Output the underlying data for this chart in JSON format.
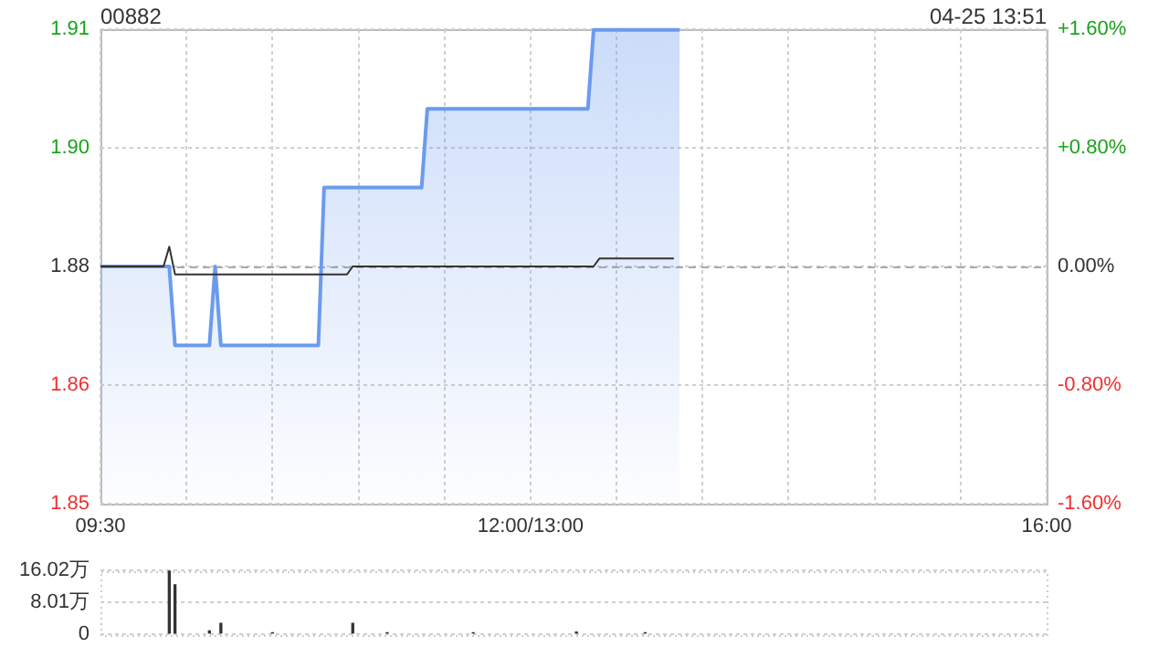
{
  "chart_data": [
    {
      "type": "line",
      "title": "00882",
      "subtitle": "04-25 13:51",
      "marker": "none",
      "grid": true,
      "categories": [
        "09:30",
        null,
        null,
        null,
        null,
        null,
        null,
        null,
        null,
        null,
        null,
        null,
        null,
        null,
        null,
        null,
        null,
        null,
        null,
        null,
        null,
        null,
        null,
        null,
        null,
        null,
        null,
        null,
        null,
        null,
        null,
        null,
        null,
        null,
        null,
        null,
        null,
        null,
        null,
        null,
        null,
        null,
        null,
        null,
        null,
        null,
        null,
        null,
        null,
        null,
        null,
        null,
        null,
        null,
        null,
        null,
        null,
        null,
        null,
        null,
        null,
        null,
        null,
        null,
        null,
        null,
        null,
        null,
        null,
        null,
        null,
        null,
        null,
        null,
        null,
        "12:00/13:00",
        null,
        null,
        null,
        null,
        null,
        null,
        null,
        null,
        null,
        null,
        null,
        null,
        null,
        null,
        null,
        null,
        null,
        null,
        null,
        null,
        null,
        null,
        null,
        null,
        null,
        null,
        null,
        null,
        null,
        null,
        null,
        null,
        null,
        null,
        null,
        null,
        null,
        null,
        null,
        null,
        null,
        null,
        null,
        null,
        null,
        null,
        null,
        null,
        null,
        null,
        null,
        null,
        null,
        null,
        null,
        null,
        null,
        null,
        null,
        null,
        null,
        null,
        null,
        null,
        null,
        null,
        null,
        null,
        null,
        null,
        null,
        null,
        null,
        null,
        null,
        null,
        null,
        null,
        null,
        null,
        null,
        null,
        null,
        null,
        null,
        null,
        null,
        null,
        null,
        "16:00"
      ],
      "ylim": [
        1.84992,
        1.91008
      ],
      "yticks": [
        {
          "value": 1.84992,
          "label": "1.85"
        },
        {
          "value": 1.86496,
          "label": "1.86"
        },
        {
          "value": 1.88,
          "label": "1.88"
        },
        {
          "value": 1.89504,
          "label": "1.90"
        },
        {
          "value": 1.91008,
          "label": "1.91"
        }
      ],
      "y2lim": [
        -1.6,
        1.6
      ],
      "y2ticks": [
        {
          "value": -1.6,
          "label": "-1.60%"
        },
        {
          "value": -0.8,
          "label": "-0.80%"
        },
        {
          "value": 0,
          "label": "0.00%"
        },
        {
          "value": 0.8,
          "label": "+0.80%"
        },
        {
          "value": 1.6,
          "label": "+1.60%"
        }
      ],
      "ref_lines": [
        {
          "axis": "y",
          "value": 1.88,
          "line_style": "dashed",
          "color": "#aaaaaa"
        }
      ],
      "series": [
        {
          "type": "area",
          "color": "#6a9bef",
          "values": [
            1.88,
            1.88,
            1.88,
            1.88,
            1.88,
            1.88,
            1.88,
            1.88,
            1.88,
            1.88,
            1.88,
            1.88,
            1.88,
            1.87,
            1.87,
            1.87,
            1.87,
            1.87,
            1.87,
            1.87,
            1.88,
            1.87,
            1.87,
            1.87,
            1.87,
            1.87,
            1.87,
            1.87,
            1.87,
            1.87,
            1.87,
            1.87,
            1.87,
            1.87,
            1.87,
            1.87,
            1.87,
            1.87,
            1.87,
            1.89,
            1.89,
            1.89,
            1.89,
            1.89,
            1.89,
            1.89,
            1.89,
            1.89,
            1.89,
            1.89,
            1.89,
            1.89,
            1.89,
            1.89,
            1.89,
            1.89,
            1.89,
            1.9,
            1.9,
            1.9,
            1.9,
            1.9,
            1.9,
            1.9,
            1.9,
            1.9,
            1.9,
            1.9,
            1.9,
            1.9,
            1.9,
            1.9,
            1.9,
            1.9,
            1.9,
            1.9,
            1.9,
            1.9,
            1.9,
            1.9,
            1.9,
            1.9,
            1.9,
            1.9,
            1.9,
            1.9,
            1.91,
            1.91,
            1.91,
            1.91,
            1.91,
            1.91,
            1.91,
            1.91,
            1.91,
            1.91,
            1.91,
            1.91,
            1.91,
            1.91,
            1.91,
            1.91,
            null,
            null,
            null,
            null,
            null,
            null,
            null,
            null,
            null,
            null,
            null,
            null,
            null,
            null,
            null,
            null,
            null,
            null,
            null,
            null,
            null,
            null,
            null,
            null,
            null,
            null,
            null,
            null,
            null,
            null,
            null,
            null,
            null,
            null,
            null,
            null,
            null,
            null,
            null,
            null,
            null,
            null,
            null,
            null,
            null,
            null,
            null,
            null,
            null,
            null,
            null,
            null,
            null,
            null,
            null,
            null,
            null,
            null,
            null,
            null,
            null,
            null,
            null,
            null
          ]
        },
        {
          "type": "line",
          "color": "#333333",
          "values": [
            1.88,
            1.88,
            1.88,
            1.88,
            1.88,
            1.88,
            1.88,
            1.88,
            1.88,
            1.88,
            1.88,
            1.88,
            1.8825,
            1.879,
            1.879,
            1.879,
            1.879,
            1.879,
            1.879,
            1.879,
            1.879,
            1.879,
            1.879,
            1.879,
            1.879,
            1.879,
            1.879,
            1.879,
            1.879,
            1.879,
            1.879,
            1.879,
            1.879,
            1.879,
            1.879,
            1.879,
            1.879,
            1.879,
            1.879,
            1.879,
            1.879,
            1.879,
            1.879,
            1.879,
            1.88,
            1.88,
            1.88,
            1.88,
            1.88,
            1.88,
            1.88,
            1.88,
            1.88,
            1.88,
            1.88,
            1.88,
            1.88,
            1.88,
            1.88,
            1.88,
            1.88,
            1.88,
            1.88,
            1.88,
            1.88,
            1.88,
            1.88,
            1.88,
            1.88,
            1.88,
            1.88,
            1.88,
            1.88,
            1.88,
            1.88,
            1.88,
            1.88,
            1.88,
            1.88,
            1.88,
            1.88,
            1.88,
            1.88,
            1.88,
            1.88,
            1.88,
            1.88,
            1.881,
            1.881,
            1.881,
            1.881,
            1.881,
            1.881,
            1.881,
            1.881,
            1.881,
            1.881,
            1.881,
            1.881,
            1.881,
            1.881,
            null,
            null,
            null,
            null,
            null,
            null,
            null,
            null,
            null,
            null,
            null,
            null,
            null,
            null,
            null,
            null,
            null,
            null,
            null,
            null,
            null,
            null,
            null,
            null,
            null,
            null,
            null,
            null,
            null,
            null,
            null,
            null,
            null,
            null,
            null,
            null,
            null,
            null,
            null,
            null,
            null,
            null,
            null,
            null,
            null,
            null,
            null,
            null,
            null,
            null,
            null,
            null,
            null,
            null,
            null,
            null,
            null,
            null,
            null,
            null,
            null,
            null,
            null,
            null,
            null
          ]
        }
      ]
    },
    {
      "type": "bar",
      "color": "#333333",
      "grid": "y",
      "tick_labels": "y",
      "categories": [
        null,
        null,
        null,
        null,
        null,
        null,
        null,
        null,
        null,
        null,
        null,
        null,
        null,
        null,
        null,
        null,
        null,
        null,
        null,
        null,
        null,
        null,
        null,
        null,
        null,
        null,
        null,
        null,
        null,
        null,
        null,
        null,
        null,
        null,
        null,
        null,
        null,
        null,
        null,
        null,
        null,
        null,
        null,
        null,
        null,
        null,
        null,
        null,
        null,
        null,
        null,
        null,
        null,
        null,
        null,
        null,
        null,
        null,
        null,
        null,
        null,
        null,
        null,
        null,
        null,
        null,
        null,
        null,
        null,
        null,
        null,
        null,
        null,
        null,
        null,
        null,
        null,
        null,
        null,
        null,
        null,
        null,
        null,
        null,
        null,
        null,
        null,
        null,
        null,
        null,
        null,
        null,
        null,
        null,
        null,
        null,
        null,
        null,
        null,
        null,
        null,
        null,
        null,
        null,
        null,
        null,
        null,
        null,
        null,
        null,
        null,
        null,
        null,
        null,
        null,
        null,
        null,
        null,
        null,
        null,
        null,
        null,
        null,
        null,
        null,
        null,
        null,
        null,
        null,
        null,
        null,
        null,
        null,
        null,
        null,
        null,
        null,
        null,
        null,
        null,
        null,
        null,
        null,
        null,
        null,
        null,
        null,
        null,
        null,
        null,
        null,
        null,
        null,
        null,
        null,
        null,
        null,
        null,
        null,
        null,
        null,
        null,
        null,
        null,
        null,
        null
      ],
      "ylim": [
        0,
        16.02
      ],
      "yticks": [
        0,
        {
          "value": 8.01,
          "label": "8.01万"
        },
        {
          "value": 16.02,
          "label": "16.02万"
        }
      ],
      "values": [
        null,
        null,
        null,
        null,
        null,
        null,
        null,
        null,
        null,
        null,
        null,
        null,
        16,
        12.4,
        null,
        null,
        null,
        null,
        null,
        0.8,
        null,
        2.7,
        null,
        null,
        null,
        null,
        null,
        null,
        null,
        null,
        0.3,
        null,
        null,
        null,
        null,
        null,
        null,
        null,
        null,
        null,
        null,
        null,
        null,
        null,
        2.7,
        null,
        null,
        null,
        null,
        null,
        0.3,
        null,
        null,
        null,
        null,
        null,
        null,
        null,
        null,
        null,
        null,
        null,
        null,
        null,
        null,
        0.3,
        null,
        null,
        null,
        null,
        null,
        null,
        null,
        null,
        null,
        null,
        null,
        null,
        null,
        null,
        null,
        null,
        null,
        0.5,
        null,
        null,
        null,
        null,
        null,
        null,
        null,
        null,
        null,
        null,
        null,
        0.3,
        null,
        null,
        null,
        null,
        null,
        null,
        null,
        null,
        null,
        null,
        null,
        null,
        null,
        null,
        null,
        null,
        null,
        null,
        null,
        null,
        null,
        null,
        null,
        null,
        null,
        null,
        null,
        null,
        null,
        null,
        null,
        null,
        null,
        null,
        null,
        null,
        null,
        null,
        null,
        null,
        null,
        null,
        null,
        null,
        null,
        null,
        null,
        null,
        null,
        null,
        null,
        null,
        null,
        null,
        null,
        null,
        null,
        null,
        null,
        null,
        null,
        null,
        null,
        null,
        null,
        null,
        null,
        null,
        null,
        null
      ]
    }
  ]
}
